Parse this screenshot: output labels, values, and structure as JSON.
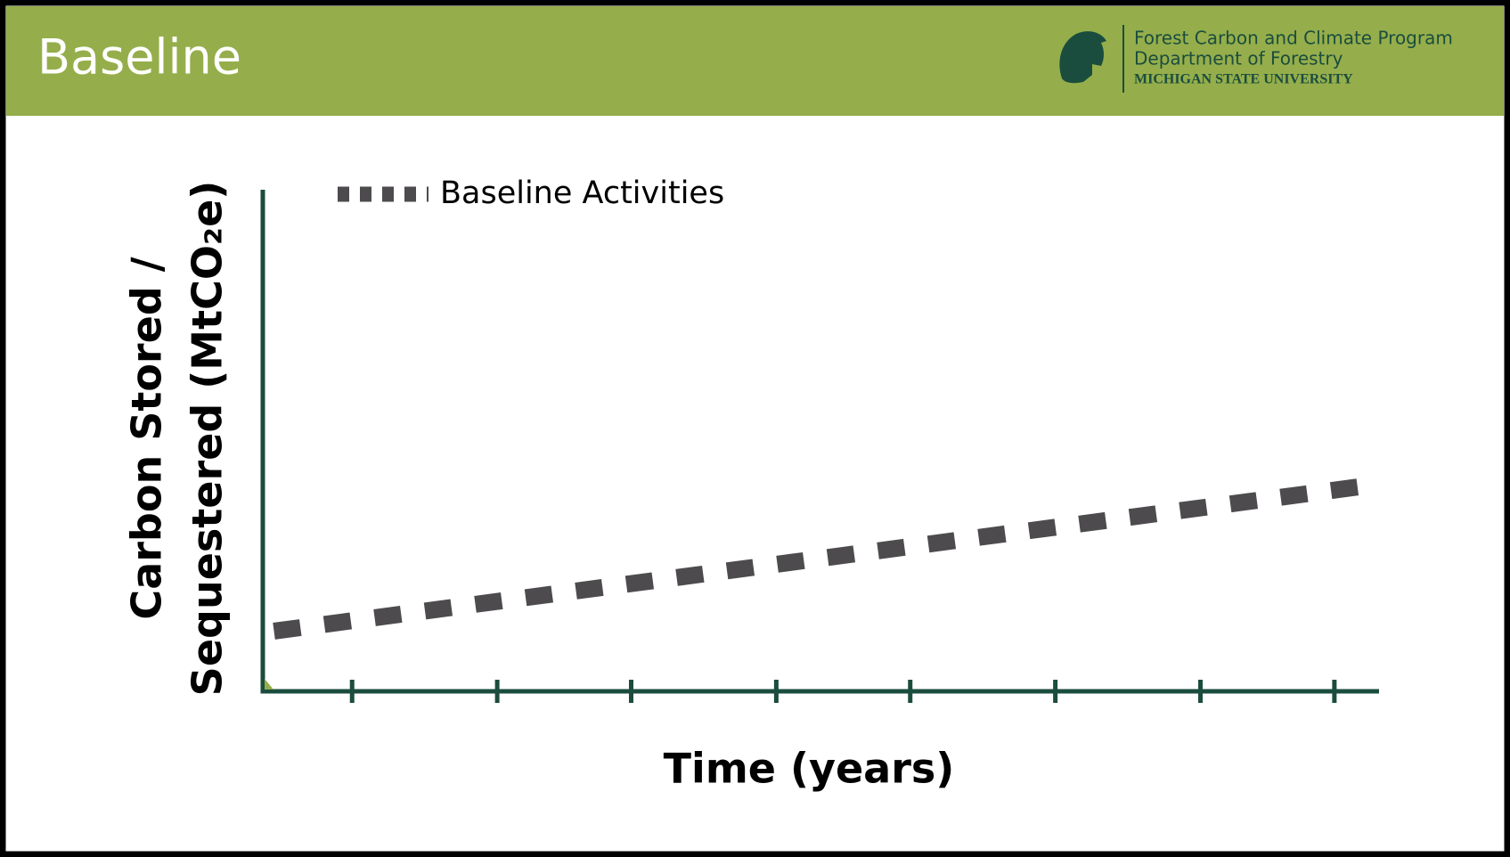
{
  "header": {
    "title": "Baseline",
    "org": [
      "Forest Carbon and Climate Program",
      "Department of Forestry",
      "MICHIGAN STATE UNIVERSITY"
    ]
  },
  "chart_data": {
    "type": "line",
    "y_label": [
      "Carbon Stored /",
      "Sequestered (MtCO₂e)"
    ],
    "x_label": "Time (years)",
    "xlim": [
      0,
      100
    ],
    "ylim": [
      0,
      100
    ],
    "xticks": [
      8,
      21,
      33,
      46,
      58,
      71,
      84,
      96
    ],
    "series": [
      {
        "name": "Baseline Activities",
        "color": "#4d4b4e",
        "x": [
          1,
          99
        ],
        "values": [
          12,
          41
        ]
      }
    ],
    "legend": "top-left"
  }
}
